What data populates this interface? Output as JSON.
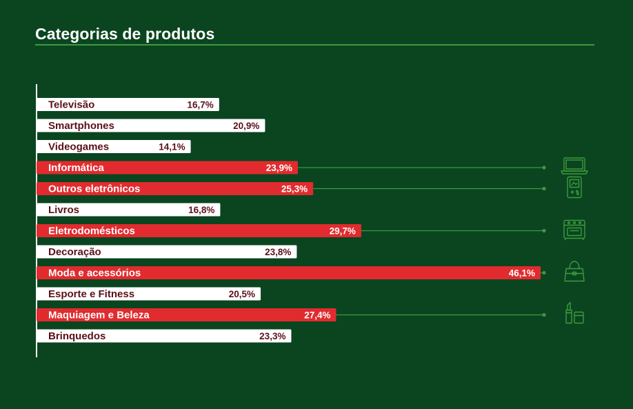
{
  "title": "Categorias de produtos",
  "colors": {
    "background": "#0a4520",
    "bar_default": "#ffffff",
    "bar_highlight": "#e12b2e",
    "label_default": "#5a1018",
    "label_highlight": "#ffffff",
    "accent": "#3f9a3c"
  },
  "chart_data": {
    "type": "bar",
    "orientation": "horizontal",
    "title": "Categorias de produtos",
    "unit": "%",
    "xlim": [
      0,
      46.1
    ],
    "categories": [
      "Televisão",
      "Smartphones",
      "Videogames",
      "Informática",
      "Outros eletrônicos",
      "Livros",
      "Eletrodomésticos",
      "Decoração",
      "Moda e acessórios",
      "Esporte e Fitness",
      "Maquiagem e Beleza",
      "Brinquedos"
    ],
    "values": [
      16.7,
      20.9,
      14.1,
      23.9,
      25.3,
      16.8,
      29.7,
      23.8,
      46.1,
      20.5,
      27.4,
      23.3
    ],
    "value_labels": [
      "16,7%",
      "20,9%",
      "14,1%",
      "23,9%",
      "25,3%",
      "16,8%",
      "29,7%",
      "23,8%",
      "46,1%",
      "20,5%",
      "27,4%",
      "23,3%"
    ],
    "highlighted": [
      false,
      false,
      false,
      true,
      true,
      false,
      true,
      false,
      true,
      false,
      true,
      false
    ],
    "icons": [
      null,
      null,
      null,
      "laptop-icon",
      "handheld-console-icon",
      null,
      "stove-icon",
      null,
      "handbag-icon",
      null,
      "lipstick-icon",
      null
    ]
  }
}
